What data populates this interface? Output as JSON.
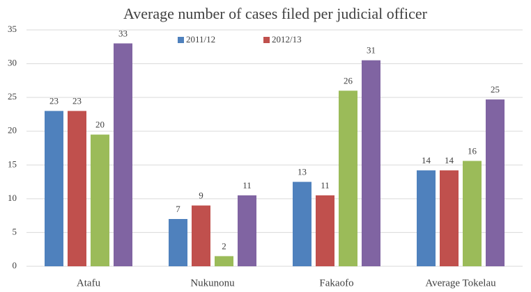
{
  "chart_data": {
    "type": "bar",
    "title": "Average number of cases filed per judicial officer",
    "categories": [
      "Atafu",
      "Nukunonu",
      "Fakaofo",
      "Average Tokelau"
    ],
    "series": [
      {
        "name": "2011/12",
        "color": "#4f81bd",
        "values": [
          23,
          7,
          12.5,
          14.2
        ],
        "value_labels": [
          "23",
          "7",
          "13",
          "14"
        ]
      },
      {
        "name": "2012/13",
        "color": "#c0504d",
        "values": [
          23,
          9,
          10.5,
          14.2
        ],
        "value_labels": [
          "23",
          "9",
          "11",
          "14"
        ]
      },
      {
        "color": "#9bbb59",
        "values": [
          19.5,
          1.5,
          26,
          15.6
        ],
        "value_labels": [
          "20",
          "2",
          "26",
          "16"
        ]
      },
      {
        "color": "#8064a2",
        "values": [
          33,
          10.5,
          30.5,
          24.7
        ],
        "value_labels": [
          "33",
          "11",
          "31",
          "25"
        ]
      }
    ],
    "ylim": [
      0,
      35
    ],
    "yticks": [
      0,
      5,
      10,
      15,
      20,
      25,
      30,
      35
    ],
    "grid": true,
    "legend": "top"
  }
}
